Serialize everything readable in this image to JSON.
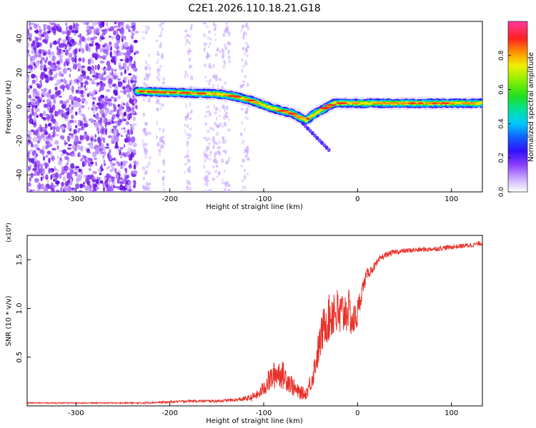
{
  "title": "C2E1.2026.110.18.21.G18",
  "colorbar": {
    "label": "Normalized spectral amplitude",
    "ticks": [
      "0.0",
      "0.2",
      "0.4",
      "0.6",
      "0.8"
    ],
    "tick_values": [
      0.0,
      0.2,
      0.4,
      0.6,
      0.8
    ],
    "range": [
      0,
      1
    ]
  },
  "chart_data": [
    {
      "type": "heatmap",
      "title": "C2E1.2026.110.18.21.G18",
      "xlabel": "Height of straight line (km)",
      "ylabel": "Frequency (Hz)",
      "xlim": [
        -352,
        133
      ],
      "ylim": [
        -50,
        50
      ],
      "xticks": [
        -300,
        -200,
        -100,
        0,
        100
      ],
      "xtick_labels": [
        "-300",
        "-200",
        "-100",
        "0",
        "100"
      ],
      "yticks": [
        -40,
        -20,
        0,
        20,
        40
      ],
      "ytick_labels": [
        "-40",
        "-20",
        "0",
        "20",
        "40"
      ],
      "noise_region_x": [
        -352,
        -235
      ],
      "signal_track": {
        "x": [
          -235,
          -210,
          -180,
          -150,
          -130,
          -110,
          -90,
          -70,
          -55,
          -45,
          -35,
          -25,
          0,
          50,
          100,
          133
        ],
        "y": [
          9,
          8.5,
          8,
          7.5,
          6,
          3,
          -1,
          -4,
          -8,
          -4,
          -1,
          2,
          2,
          2,
          2,
          2
        ]
      },
      "colorbar_range": [
        0,
        1
      ]
    },
    {
      "type": "line",
      "xlabel": "Height of straight line (km)",
      "ylabel": "SNR (10 * v/v)",
      "exponent_label": "(x10⁴)",
      "xlim": [
        -352,
        133
      ],
      "ylim": [
        0,
        1.75
      ],
      "xticks": [
        -300,
        -200,
        -100,
        0,
        100
      ],
      "xtick_labels": [
        "-300",
        "-200",
        "-100",
        "0",
        "100"
      ],
      "yticks": [
        0.5,
        1.0,
        1.5
      ],
      "ytick_labels": [
        "0.5",
        "1.0",
        "1.5"
      ],
      "series": [
        {
          "name": "SNR",
          "color": "#e8312a",
          "x": [
            -352,
            -300,
            -250,
            -230,
            -200,
            -180,
            -150,
            -130,
            -115,
            -105,
            -95,
            -85,
            -75,
            -65,
            -55,
            -48,
            -40,
            -35,
            -30,
            -25,
            -20,
            -15,
            -10,
            -5,
            0,
            5,
            10,
            15,
            20,
            25,
            30,
            40,
            60,
            80,
            100,
            120,
            133
          ],
          "y": [
            0.03,
            0.03,
            0.03,
            0.03,
            0.04,
            0.05,
            0.05,
            0.06,
            0.08,
            0.12,
            0.25,
            0.35,
            0.28,
            0.15,
            0.12,
            0.3,
            0.65,
            0.85,
            0.9,
            1.0,
            0.9,
            0.95,
            1.0,
            0.85,
            0.95,
            1.2,
            1.35,
            1.4,
            1.45,
            1.52,
            1.55,
            1.58,
            1.6,
            1.61,
            1.63,
            1.65,
            1.67
          ],
          "noise": [
            0.005,
            0.005,
            0.006,
            0.008,
            0.01,
            0.012,
            0.014,
            0.016,
            0.03,
            0.05,
            0.12,
            0.16,
            0.13,
            0.08,
            0.06,
            0.12,
            0.2,
            0.22,
            0.25,
            0.3,
            0.28,
            0.25,
            0.22,
            0.18,
            0.16,
            0.08,
            0.06,
            0.05,
            0.04,
            0.035,
            0.03,
            0.025,
            0.025,
            0.025,
            0.025,
            0.025,
            0.025
          ]
        }
      ]
    }
  ]
}
